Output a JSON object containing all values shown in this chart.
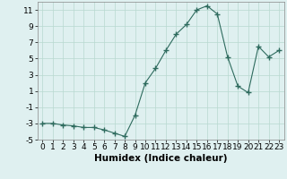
{
  "x": [
    0,
    1,
    2,
    3,
    4,
    5,
    6,
    7,
    8,
    9,
    10,
    11,
    12,
    13,
    14,
    15,
    16,
    17,
    18,
    19,
    20,
    21,
    22,
    23
  ],
  "y": [
    -3,
    -3,
    -3.2,
    -3.3,
    -3.5,
    -3.5,
    -3.8,
    -4.2,
    -4.6,
    -2,
    2,
    3.8,
    6,
    8,
    9.2,
    11,
    11.5,
    10.5,
    5.2,
    1.6,
    0.8,
    6.5,
    5.2,
    6
  ],
  "line_color": "#2e6b5e",
  "marker": "+",
  "marker_size": 4,
  "bg_color": "#dff0f0",
  "grid_color": "#b8d8d0",
  "xlabel": "Humidex (Indice chaleur)",
  "xlabel_fontsize": 7.5,
  "xlim": [
    -0.5,
    23.5
  ],
  "ylim": [
    -5,
    12
  ],
  "yticks": [
    -5,
    -3,
    -1,
    1,
    3,
    5,
    7,
    9,
    11
  ],
  "xticks": [
    0,
    1,
    2,
    3,
    4,
    5,
    6,
    7,
    8,
    9,
    10,
    11,
    12,
    13,
    14,
    15,
    16,
    17,
    18,
    19,
    20,
    21,
    22,
    23
  ],
  "tick_fontsize": 6.5
}
